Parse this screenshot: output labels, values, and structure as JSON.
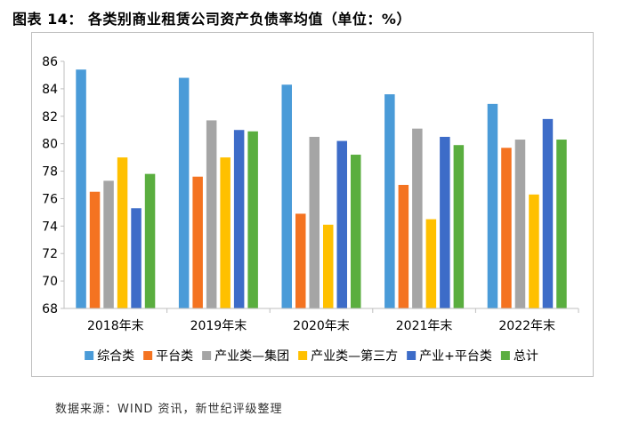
{
  "figure": {
    "title": "图表 14：  各类别商业租赁公司资产负债率均值（单位：%）",
    "source": "数据来源：WIND 资讯，新世纪评级整理"
  },
  "chart_data": {
    "type": "bar",
    "title": "各类别商业租赁公司资产负债率均值（单位：%）",
    "xlabel": "",
    "ylabel": "",
    "ylim": [
      68,
      86
    ],
    "yticks": [
      68,
      70,
      72,
      74,
      76,
      78,
      80,
      82,
      84,
      86
    ],
    "grid": false,
    "legend_position": "bottom",
    "categories": [
      "2018年末",
      "2019年末",
      "2020年末",
      "2021年末",
      "2022年末"
    ],
    "series": [
      {
        "name": "综合类",
        "color": "#4A9BD8",
        "values": [
          85.4,
          84.8,
          84.3,
          83.6,
          82.9
        ]
      },
      {
        "name": "平台类",
        "color": "#F47321",
        "values": [
          76.5,
          77.6,
          74.9,
          77.0,
          79.7
        ]
      },
      {
        "name": "产业类—集团",
        "color": "#A5A5A5",
        "values": [
          77.3,
          81.7,
          80.5,
          81.1,
          80.3
        ]
      },
      {
        "name": "产业类—第三方",
        "color": "#FFC000",
        "values": [
          79.0,
          79.0,
          74.1,
          74.5,
          76.3
        ]
      },
      {
        "name": "产业+平台类",
        "color": "#3D6CC8",
        "values": [
          75.3,
          81.0,
          80.2,
          80.5,
          81.8
        ]
      },
      {
        "name": "总计",
        "color": "#5AAE3F",
        "values": [
          77.8,
          80.9,
          79.2,
          79.9,
          80.3
        ]
      }
    ]
  }
}
